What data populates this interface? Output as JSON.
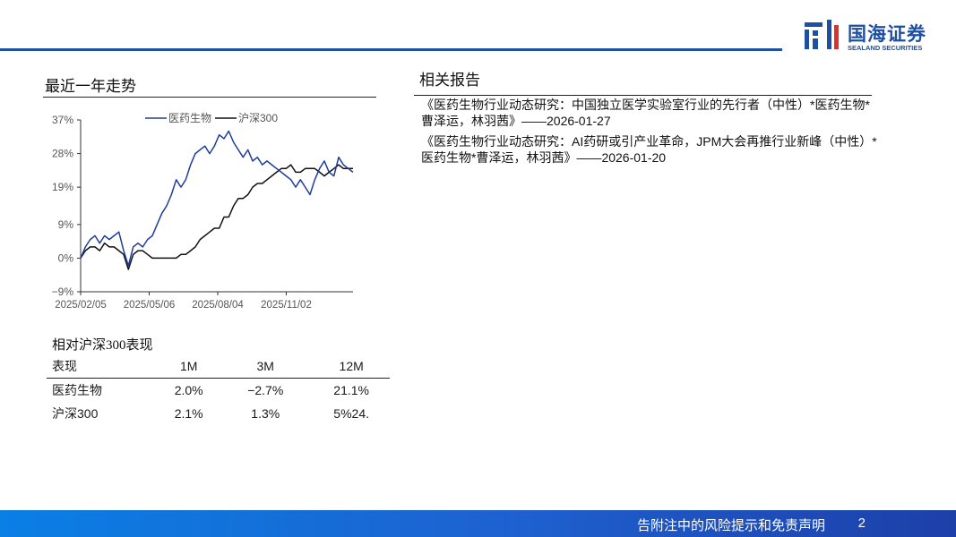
{
  "header": {
    "brand_cn": "国海证券",
    "brand_en": "SEALAND SECURITIES",
    "accent_color": "#1d4fa3"
  },
  "trend": {
    "title": "最近一年走势"
  },
  "chart_data": {
    "type": "line",
    "yticks": [
      "37%",
      "28%",
      "19%",
      "9%",
      "0%",
      "−9%"
    ],
    "ylim": [
      -9,
      37
    ],
    "xticks": [
      "2025/02/05",
      "2025/05/06",
      "2025/08/04",
      "2025/11/02"
    ],
    "series": [
      {
        "name": "医药生物",
        "color": "#1f3d99",
        "values": [
          0,
          3,
          5,
          6,
          4,
          6,
          5,
          6,
          7,
          2,
          -2,
          3,
          4,
          3,
          5,
          6,
          9,
          12,
          14,
          17,
          21,
          19,
          21,
          25,
          28,
          29,
          30,
          28,
          30,
          33,
          32,
          34,
          31,
          29,
          27,
          29,
          26,
          27,
          25,
          26,
          25,
          24,
          23,
          22,
          21,
          19,
          21,
          19,
          17,
          21,
          24,
          26,
          23,
          22,
          27,
          25,
          24,
          23
        ]
      },
      {
        "name": "沪深300",
        "color": "#111111",
        "values": [
          0,
          2,
          3,
          3,
          2,
          4,
          3,
          3,
          2,
          1,
          -3,
          1,
          2,
          2,
          1,
          0,
          0,
          0,
          0,
          0,
          0,
          1,
          1,
          2,
          3,
          5,
          6,
          7,
          8,
          8,
          11,
          11,
          14,
          16,
          16,
          17,
          19,
          20,
          20,
          21,
          22,
          23,
          24,
          24,
          25,
          23,
          23,
          24,
          24,
          24,
          23,
          22,
          23,
          24,
          25,
          24,
          24,
          24
        ]
      }
    ]
  },
  "performance": {
    "title": "相对沪深300表现",
    "headers": [
      "表现",
      "1M",
      "3M",
      "12M"
    ],
    "rows": [
      [
        "医药生物",
        "2.0%",
        "−2.7%",
        "21.1%"
      ],
      [
        "沪深300",
        "2.1%",
        "1.3%",
        "5%24."
      ]
    ]
  },
  "reports": {
    "title": "相关报告",
    "items": [
      "《医药生物行业动态研究：中国独立医学实验室行业的先行者（中性）*医药生物*曹泽运，林羽茜》——2026-01-27",
      "《医药生物行业动态研究：AI药研或引产业革命，JPM大会再推行业新峰（中性）*医药生物*曹泽运，林羽茜》——2026-01-20"
    ]
  },
  "footer": {
    "disclaimer": "告附注中的风险提示和免责声明",
    "page": "2"
  }
}
